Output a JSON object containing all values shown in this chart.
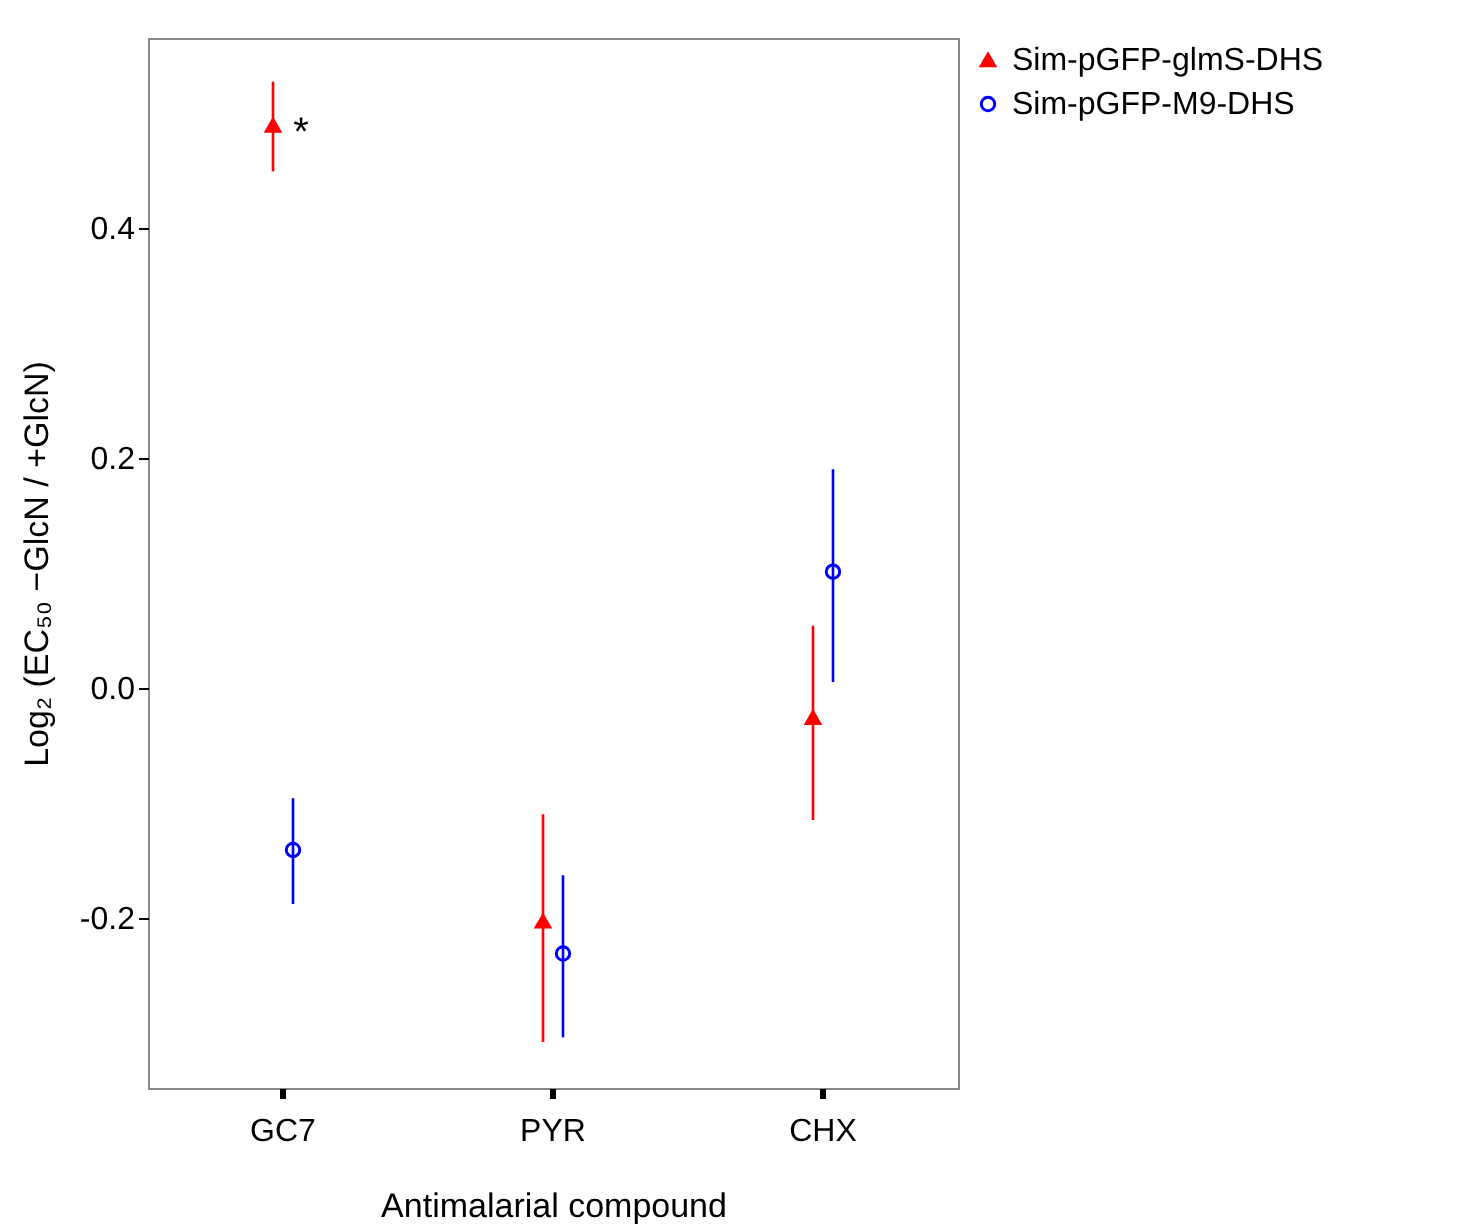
{
  "chart_data": {
    "type": "scatter",
    "xlabel": "Antimalarial compound",
    "ylabel": "Log₂ (EC₅₀ −GlcN / +GlcN)",
    "categories": [
      "GC7",
      "PYR",
      "CHX"
    ],
    "series": [
      {
        "name": "Sim-pGFP-glmS-DHS",
        "color": "#ff0000",
        "marker": "triangle",
        "values": [
          0.489,
          -0.203,
          -0.026
        ],
        "errors": [
          [
            0.449,
            0.527
          ],
          [
            -0.308,
            -0.11
          ],
          [
            -0.115,
            0.054
          ]
        ]
      },
      {
        "name": "Sim-pGFP-M9-DHS",
        "color": "#0000ff",
        "marker": "circle",
        "values": [
          -0.141,
          -0.231,
          0.101
        ],
        "errors": [
          [
            -0.188,
            -0.096
          ],
          [
            -0.304,
            -0.163
          ],
          [
            0.005,
            0.19
          ]
        ]
      }
    ],
    "ylim": [
      -0.348,
      0.565
    ],
    "yticks": [
      {
        "value": -0.2,
        "label": "-0.2"
      },
      {
        "value": 0,
        "label": "0.0"
      },
      0.2,
      0.4
    ],
    "annotations": [
      "*"
    ],
    "legend": "top right",
    "grid": false
  }
}
